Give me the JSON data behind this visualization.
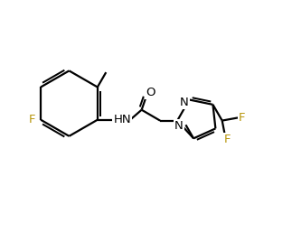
{
  "background_color": "#ffffff",
  "line_color": "#000000",
  "label_color_F": "#b8960c",
  "figsize": [
    3.23,
    2.67
  ],
  "dpi": 100,
  "bond_lw": 1.6,
  "xlim": [
    0,
    10
  ],
  "ylim": [
    0,
    8.3
  ]
}
